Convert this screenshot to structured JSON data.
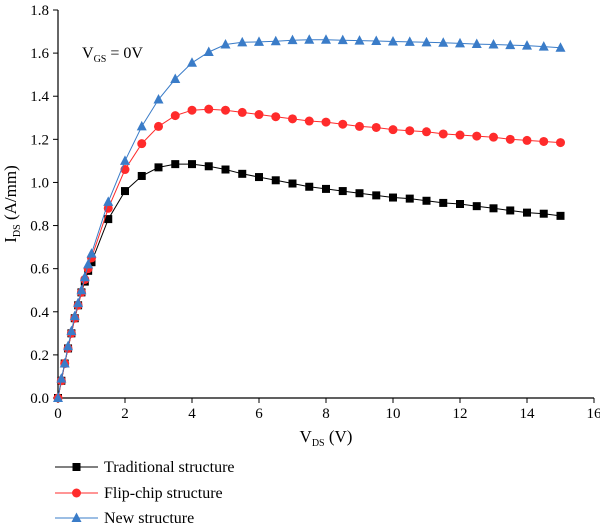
{
  "chart_data": {
    "type": "line",
    "xlabel": {
      "main": "V",
      "sub": "DS",
      "suffix": " (V)"
    },
    "ylabel": {
      "main": "I",
      "sub": "DS",
      "suffix": " (A/mm)"
    },
    "annotation": {
      "main": "V",
      "sub": "GS",
      "suffix": " = 0V"
    },
    "xlim": [
      0,
      16
    ],
    "ylim": [
      0,
      1.8
    ],
    "xticks": [
      0,
      2,
      4,
      6,
      8,
      10,
      12,
      14,
      16
    ],
    "yticks": [
      0.0,
      0.2,
      0.4,
      0.6,
      0.8,
      1.0,
      1.2,
      1.4,
      1.6,
      1.8
    ],
    "xtick_labels": [
      "0",
      "2",
      "4",
      "6",
      "8",
      "10",
      "12",
      "14",
      "16"
    ],
    "ytick_labels": [
      "0.0",
      "0.2",
      "0.4",
      "0.6",
      "0.8",
      "1.0",
      "1.2",
      "1.4",
      "1.6",
      "1.8"
    ],
    "grid": false,
    "legend_position": "bottom",
    "series": [
      {
        "name": "Traditional structure",
        "color": "#000000",
        "marker": "square",
        "x": [
          0,
          0.1,
          0.2,
          0.3,
          0.4,
          0.5,
          0.6,
          0.7,
          0.8,
          0.9,
          1.0,
          1.5,
          2.0,
          2.5,
          3.0,
          3.5,
          4.0,
          4.5,
          5.0,
          5.5,
          6.0,
          6.5,
          7.0,
          7.5,
          8.0,
          8.5,
          9.0,
          9.5,
          10.0,
          10.5,
          11.0,
          11.5,
          12.0,
          12.5,
          13.0,
          13.5,
          14.0,
          14.5,
          15.0
        ],
        "y": [
          0,
          0.08,
          0.16,
          0.23,
          0.3,
          0.37,
          0.43,
          0.49,
          0.54,
          0.59,
          0.63,
          0.83,
          0.96,
          1.03,
          1.07,
          1.085,
          1.085,
          1.075,
          1.06,
          1.04,
          1.025,
          1.01,
          0.995,
          0.98,
          0.97,
          0.96,
          0.95,
          0.94,
          0.93,
          0.925,
          0.915,
          0.905,
          0.9,
          0.89,
          0.88,
          0.87,
          0.86,
          0.855,
          0.845
        ]
      },
      {
        "name": "Flip-chip structure",
        "color": "#ff2b2b",
        "marker": "circle",
        "x": [
          0,
          0.1,
          0.2,
          0.3,
          0.4,
          0.5,
          0.6,
          0.7,
          0.8,
          0.9,
          1.0,
          1.5,
          2.0,
          2.5,
          3.0,
          3.5,
          4.0,
          4.5,
          5.0,
          5.5,
          6.0,
          6.5,
          7.0,
          7.5,
          8.0,
          8.5,
          9.0,
          9.5,
          10.0,
          10.5,
          11.0,
          11.5,
          12.0,
          12.5,
          13.0,
          13.5,
          14.0,
          14.5,
          15.0
        ],
        "y": [
          0,
          0.08,
          0.16,
          0.23,
          0.3,
          0.37,
          0.43,
          0.49,
          0.55,
          0.6,
          0.65,
          0.88,
          1.06,
          1.18,
          1.26,
          1.31,
          1.335,
          1.34,
          1.335,
          1.325,
          1.315,
          1.305,
          1.295,
          1.285,
          1.28,
          1.27,
          1.26,
          1.255,
          1.245,
          1.24,
          1.235,
          1.225,
          1.22,
          1.215,
          1.21,
          1.2,
          1.195,
          1.19,
          1.185
        ]
      },
      {
        "name": "New structure",
        "color": "#3a7cc8",
        "marker": "triangle",
        "x": [
          0,
          0.1,
          0.2,
          0.3,
          0.4,
          0.5,
          0.6,
          0.7,
          0.8,
          0.9,
          1.0,
          1.5,
          2.0,
          2.5,
          3.0,
          3.5,
          4.0,
          4.5,
          5.0,
          5.5,
          6.0,
          6.5,
          7.0,
          7.5,
          8.0,
          8.5,
          9.0,
          9.5,
          10.0,
          10.5,
          11.0,
          11.5,
          12.0,
          12.5,
          13.0,
          13.5,
          14.0,
          14.5,
          15.0
        ],
        "y": [
          0,
          0.09,
          0.16,
          0.24,
          0.31,
          0.38,
          0.44,
          0.5,
          0.56,
          0.62,
          0.67,
          0.91,
          1.1,
          1.26,
          1.385,
          1.48,
          1.555,
          1.605,
          1.64,
          1.65,
          1.652,
          1.655,
          1.66,
          1.662,
          1.662,
          1.66,
          1.658,
          1.656,
          1.654,
          1.652,
          1.65,
          1.648,
          1.645,
          1.642,
          1.64,
          1.637,
          1.635,
          1.63,
          1.625
        ]
      }
    ]
  }
}
